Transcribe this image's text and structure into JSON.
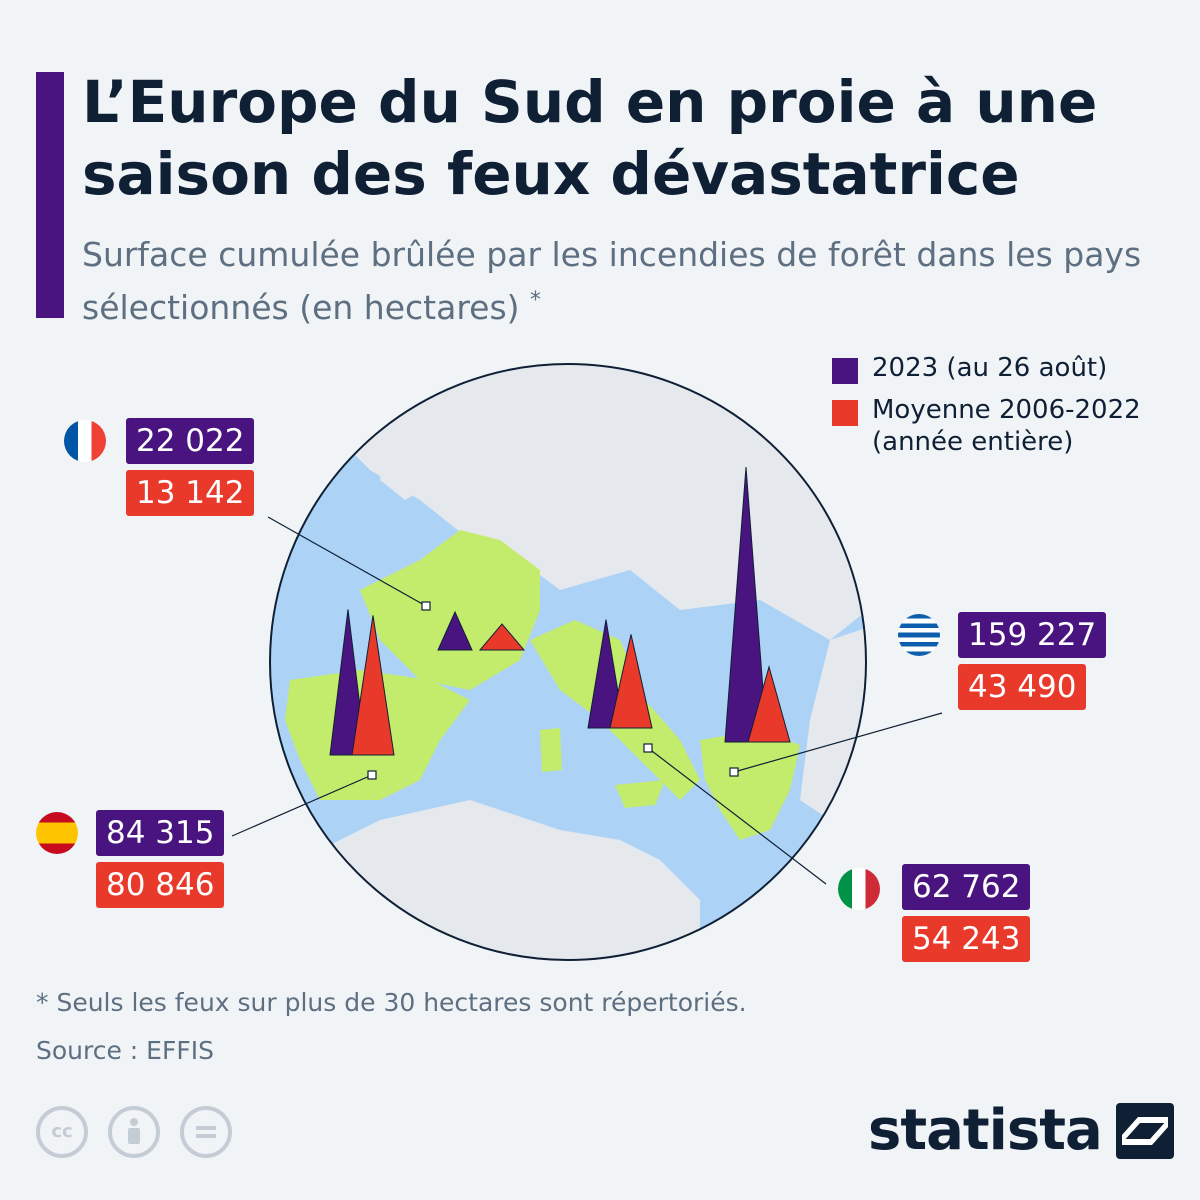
{
  "header": {
    "title": "L’Europe du Sud en proie à une saison des feux dévastatrice",
    "subtitle": "Surface cumulée brûlée par les incendies de forêt dans les pays sélectionnés (en hectares)",
    "subtitle_mark": "*"
  },
  "legend": {
    "items": [
      {
        "label": "2023 (au 26 août)",
        "color": "#4a1480"
      },
      {
        "label": "Moyenne 2006-2022 (année entière)",
        "color": "#e8392b"
      }
    ]
  },
  "chart_data": {
    "type": "bar",
    "categories": [
      "France",
      "Espagne",
      "Italie",
      "Grèce"
    ],
    "series": [
      {
        "name": "2023 (au 26 août)",
        "values": [
          22022,
          84315,
          62762,
          159227
        ],
        "labels": [
          "22 022",
          "84 315",
          "62 762",
          "159 227"
        ],
        "color": "#4a1480"
      },
      {
        "name": "Moyenne 2006-2022 (année entière)",
        "values": [
          13142,
          80846,
          54243,
          43490
        ],
        "labels": [
          "13 142",
          "80 846",
          "54 243",
          "43 490"
        ],
        "color": "#e8392b"
      }
    ]
  },
  "footer": {
    "footnote": "* Seuls les feux sur plus de 30 hectares sont répertoriés.",
    "source": "Source : EFFIS",
    "license_icons": [
      {
        "icon": "cc-icon",
        "text": "cc"
      },
      {
        "icon": "attribution-icon",
        "text": ""
      },
      {
        "icon": "no-derivatives-icon",
        "text": ""
      }
    ],
    "brand": "statista"
  }
}
